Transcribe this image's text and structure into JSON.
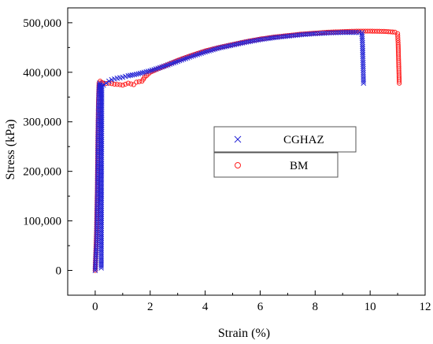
{
  "chart_data": {
    "type": "scatter",
    "title": "",
    "xlabel": "Strain (%)",
    "ylabel": "Stress (kPa)",
    "xlim": [
      -1,
      12
    ],
    "ylim": [
      -50000,
      530000
    ],
    "x_ticks": [
      0,
      2,
      4,
      6,
      8,
      10,
      12
    ],
    "x_tick_labels": [
      "0",
      "2",
      "4",
      "6",
      "8",
      "10",
      "12"
    ],
    "y_ticks": [
      0,
      100000,
      200000,
      300000,
      400000,
      500000
    ],
    "y_tick_labels": [
      "0",
      "100,000",
      "200,000",
      "300,000",
      "400,000",
      "500,000"
    ],
    "grid": false,
    "legend_position": "center-right",
    "series": [
      {
        "name": "CGHAZ",
        "marker": "x",
        "color": "#2323d6",
        "x": [
          0.0,
          0.05,
          0.08,
          0.1,
          0.12,
          0.14,
          0.16,
          0.18,
          0.2,
          0.22,
          0.22,
          0.24,
          0.3,
          0.4,
          0.5,
          0.6,
          0.8,
          1.0,
          1.2,
          1.5,
          2.0,
          2.5,
          3.0,
          3.5,
          4.0,
          4.5,
          5.0,
          5.5,
          6.0,
          6.5,
          7.0,
          7.5,
          8.0,
          8.5,
          9.0,
          9.5,
          9.7,
          9.72,
          9.74,
          9.76
        ],
        "y": [
          0,
          60000,
          150000,
          250000,
          330000,
          370000,
          378000,
          370000,
          375000,
          372000,
          5000,
          372000,
          374000,
          378000,
          382000,
          385000,
          388000,
          390000,
          393000,
          396000,
          403000,
          412000,
          422000,
          432000,
          441000,
          449000,
          455000,
          461000,
          466000,
          470000,
          473000,
          476000,
          478000,
          479500,
          480500,
          480500,
          480000,
          460000,
          420000,
          378000
        ]
      },
      {
        "name": "BM",
        "marker": "o",
        "color": "#ff2020",
        "x": [
          0.0,
          0.05,
          0.08,
          0.1,
          0.12,
          0.14,
          0.18,
          0.3,
          0.5,
          0.7,
          0.9,
          1.0,
          1.2,
          1.4,
          1.5,
          1.7,
          1.8,
          2.0,
          2.5,
          3.0,
          3.5,
          4.0,
          4.5,
          5.0,
          5.5,
          6.0,
          6.5,
          7.0,
          7.5,
          8.0,
          8.5,
          9.0,
          9.5,
          10.0,
          10.5,
          10.9,
          11.0,
          11.02,
          11.04,
          11.06
        ],
        "y": [
          0,
          80000,
          170000,
          270000,
          340000,
          378000,
          382000,
          377000,
          378000,
          376000,
          375000,
          374000,
          378000,
          375000,
          380000,
          382000,
          390000,
          400000,
          412000,
          424000,
          434000,
          443000,
          450000,
          456000,
          462000,
          467000,
          471000,
          474000,
          477000,
          479000,
          481000,
          482000,
          483000,
          483000,
          482500,
          481000,
          478000,
          455000,
          415000,
          378000
        ]
      }
    ]
  }
}
